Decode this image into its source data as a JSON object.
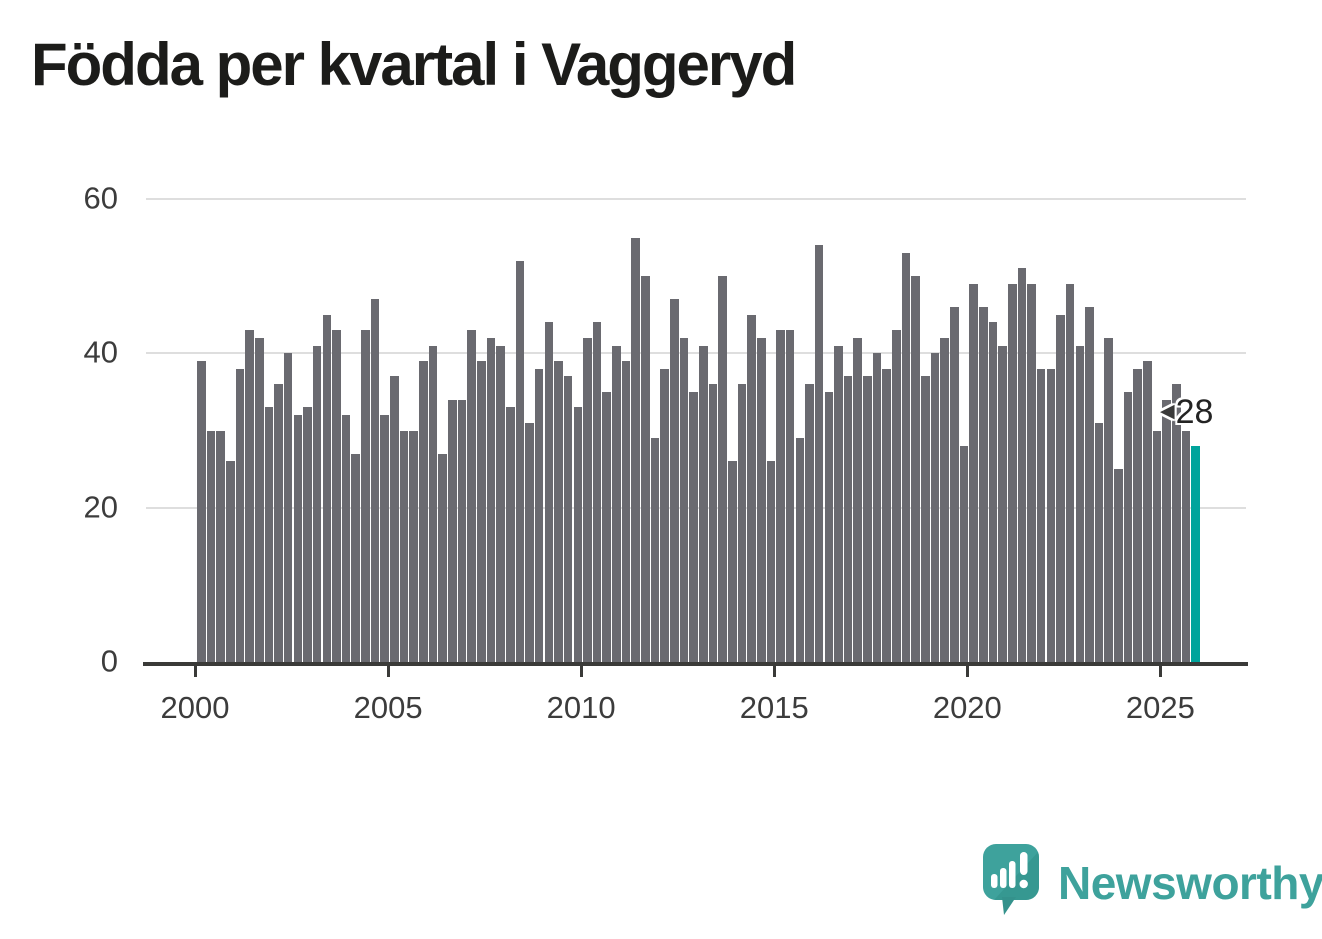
{
  "title": "Födda per kvartal i Vaggeryd",
  "annotation": {
    "pointer_icon": "left-arrow",
    "value_label": "28"
  },
  "branding": {
    "name": "Newsworthy",
    "logo_icon": "speech-bubble-bar-chart"
  },
  "colors": {
    "bar": "#6a6a70",
    "highlight": "#00a49c",
    "axis": "#3a3a38",
    "grid": "#dedede",
    "tick_text": "#3c3c3c",
    "title_text": "#1c1c1a",
    "brand": "#3ea29c",
    "brand_dark": "#2f9089"
  },
  "chart_data": {
    "type": "bar",
    "title": "Födda per kvartal i Vaggeryd",
    "x_unit": "quarter",
    "x_start": "2000 Q1",
    "x_end": "2025 Q4",
    "x_tick_labels": [
      "2000",
      "2005",
      "2010",
      "2015",
      "2020",
      "2025"
    ],
    "quarters_per_tick": 20,
    "y_ticks": [
      0,
      20,
      40,
      60
    ],
    "ylim": [
      0,
      65
    ],
    "grid": "horizontal",
    "legend": "none",
    "highlight": {
      "index": 103,
      "quarter": "2025 Q4",
      "value": 28,
      "label": "28"
    },
    "values": [
      39,
      30,
      30,
      26,
      38,
      43,
      42,
      33,
      36,
      40,
      32,
      33,
      41,
      45,
      43,
      32,
      27,
      43,
      47,
      32,
      37,
      30,
      30,
      39,
      41,
      27,
      34,
      34,
      43,
      39,
      42,
      41,
      33,
      52,
      31,
      38,
      44,
      39,
      37,
      33,
      42,
      44,
      35,
      41,
      39,
      55,
      50,
      29,
      38,
      47,
      42,
      35,
      41,
      36,
      50,
      26,
      36,
      45,
      42,
      26,
      43,
      43,
      29,
      36,
      54,
      35,
      41,
      37,
      42,
      37,
      40,
      38,
      43,
      53,
      50,
      37,
      40,
      42,
      46,
      28,
      49,
      46,
      44,
      41,
      49,
      51,
      49,
      38,
      38,
      45,
      49,
      41,
      46,
      31,
      42,
      25,
      35,
      38,
      39,
      30,
      34,
      36,
      30,
      28
    ]
  }
}
